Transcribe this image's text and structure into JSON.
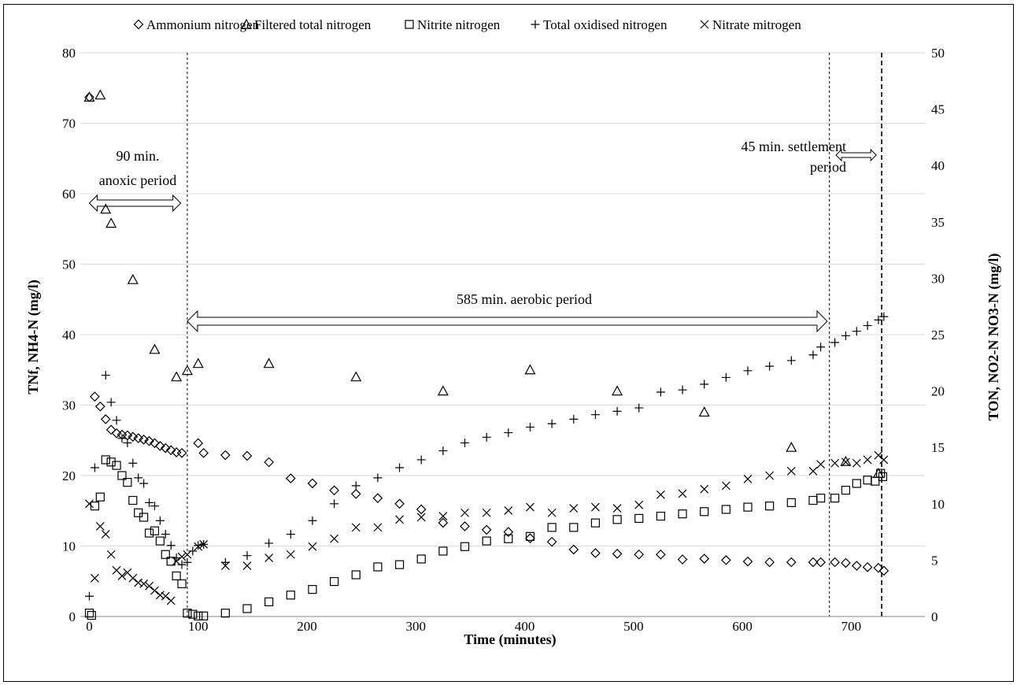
{
  "chart_data": {
    "type": "scatter",
    "xlabel": "Time (minutes)",
    "ylabel_left": "TNf, NH4-N (mg/l)",
    "ylabel_right": "TON, NO2-N NO3-N (mg/l)",
    "xlim": [
      0,
      750
    ],
    "ylim_left": [
      0,
      80
    ],
    "ylim_right": [
      0,
      50
    ],
    "x_ticks": [
      0,
      100,
      200,
      300,
      400,
      500,
      600,
      700
    ],
    "y_left_ticks": [
      0,
      10,
      20,
      30,
      40,
      50,
      60,
      70,
      80
    ],
    "y_right_ticks": [
      0,
      5,
      10,
      15,
      20,
      25,
      30,
      35,
      40,
      45,
      50
    ],
    "grid": "horizontal",
    "legend_position": "top",
    "series": [
      {
        "name": "Ammonium nitrogen",
        "marker": "diamond",
        "axis": "left",
        "points": [
          [
            0,
            73.7
          ],
          [
            5,
            31.2
          ],
          [
            10,
            29.8
          ],
          [
            15,
            28.0
          ],
          [
            20,
            26.5
          ],
          [
            25,
            26.0
          ],
          [
            30,
            25.8
          ],
          [
            35,
            25.7
          ],
          [
            40,
            25.5
          ],
          [
            45,
            25.3
          ],
          [
            50,
            25.1
          ],
          [
            55,
            24.9
          ],
          [
            60,
            24.6
          ],
          [
            65,
            24.2
          ],
          [
            70,
            23.9
          ],
          [
            75,
            23.6
          ],
          [
            80,
            23.3
          ],
          [
            85,
            23.2
          ],
          [
            100,
            24.6
          ],
          [
            105,
            23.2
          ],
          [
            125,
            22.9
          ],
          [
            145,
            22.8
          ],
          [
            165,
            21.9
          ],
          [
            185,
            19.6
          ],
          [
            205,
            18.9
          ],
          [
            225,
            17.9
          ],
          [
            245,
            17.4
          ],
          [
            265,
            16.8
          ],
          [
            285,
            16.0
          ],
          [
            305,
            15.2
          ],
          [
            325,
            13.3
          ],
          [
            345,
            12.8
          ],
          [
            365,
            12.3
          ],
          [
            385,
            12.0
          ],
          [
            405,
            11.1
          ],
          [
            425,
            10.6
          ],
          [
            445,
            9.5
          ],
          [
            465,
            9.0
          ],
          [
            485,
            8.9
          ],
          [
            505,
            8.8
          ],
          [
            525,
            8.8
          ],
          [
            545,
            8.1
          ],
          [
            565,
            8.2
          ],
          [
            585,
            8.0
          ],
          [
            605,
            7.8
          ],
          [
            625,
            7.7
          ],
          [
            645,
            7.7
          ],
          [
            665,
            7.7
          ],
          [
            672,
            7.7
          ],
          [
            685,
            7.7
          ],
          [
            695,
            7.6
          ],
          [
            705,
            7.2
          ],
          [
            715,
            7.0
          ],
          [
            725,
            6.9
          ],
          [
            730,
            6.5
          ]
        ]
      },
      {
        "name": "Filtered total nitrogen",
        "marker": "triangle",
        "axis": "left",
        "points": [
          [
            0,
            73.7
          ],
          [
            10,
            74.0
          ],
          [
            15,
            57.8
          ],
          [
            20,
            55.8
          ],
          [
            40,
            47.8
          ],
          [
            60,
            37.9
          ],
          [
            80,
            34.0
          ],
          [
            90,
            34.9
          ],
          [
            100,
            35.9
          ],
          [
            165,
            35.9
          ],
          [
            245,
            34.0
          ],
          [
            325,
            32.0
          ],
          [
            405,
            35.0
          ],
          [
            485,
            32.0
          ],
          [
            565,
            29.0
          ],
          [
            645,
            24.0
          ],
          [
            695,
            22.0
          ],
          [
            725,
            20.3
          ]
        ]
      },
      {
        "name": "Nitrite nitrogen",
        "marker": "square",
        "axis": "right",
        "points": [
          [
            0,
            0.3
          ],
          [
            2,
            0.1
          ],
          [
            5,
            9.8
          ],
          [
            10,
            10.6
          ],
          [
            15,
            13.9
          ],
          [
            20,
            13.7
          ],
          [
            25,
            13.4
          ],
          [
            30,
            12.5
          ],
          [
            35,
            11.9
          ],
          [
            40,
            10.3
          ],
          [
            45,
            9.2
          ],
          [
            50,
            8.8
          ],
          [
            55,
            7.4
          ],
          [
            60,
            7.6
          ],
          [
            65,
            6.7
          ],
          [
            70,
            5.5
          ],
          [
            75,
            4.9
          ],
          [
            80,
            3.6
          ],
          [
            85,
            2.9
          ],
          [
            90,
            0.3
          ],
          [
            95,
            0.2
          ],
          [
            100,
            0.05
          ],
          [
            105,
            0.05
          ],
          [
            125,
            0.3
          ],
          [
            145,
            0.7
          ],
          [
            165,
            1.3
          ],
          [
            185,
            1.9
          ],
          [
            205,
            2.4
          ],
          [
            225,
            3.1
          ],
          [
            245,
            3.7
          ],
          [
            265,
            4.4
          ],
          [
            285,
            4.6
          ],
          [
            305,
            5.1
          ],
          [
            325,
            5.8
          ],
          [
            345,
            6.2
          ],
          [
            365,
            6.7
          ],
          [
            385,
            6.9
          ],
          [
            405,
            7.1
          ],
          [
            425,
            7.9
          ],
          [
            445,
            7.9
          ],
          [
            465,
            8.3
          ],
          [
            485,
            8.6
          ],
          [
            505,
            8.7
          ],
          [
            525,
            8.9
          ],
          [
            545,
            9.1
          ],
          [
            565,
            9.3
          ],
          [
            585,
            9.5
          ],
          [
            605,
            9.7
          ],
          [
            625,
            9.8
          ],
          [
            645,
            10.1
          ],
          [
            665,
            10.3
          ],
          [
            672,
            10.5
          ],
          [
            685,
            10.5
          ],
          [
            695,
            11.2
          ],
          [
            705,
            11.8
          ],
          [
            715,
            12.1
          ],
          [
            722,
            12.0
          ],
          [
            727,
            12.7
          ],
          [
            729,
            12.4
          ]
        ]
      },
      {
        "name": "Total oxidised nitrogen",
        "marker": "plus",
        "axis": "right",
        "points": [
          [
            0,
            1.8
          ],
          [
            5,
            13.2
          ],
          [
            15,
            21.4
          ],
          [
            20,
            19.0
          ],
          [
            25,
            17.4
          ],
          [
            30,
            15.8
          ],
          [
            35,
            15.4
          ],
          [
            40,
            13.6
          ],
          [
            45,
            12.3
          ],
          [
            50,
            11.8
          ],
          [
            55,
            10.1
          ],
          [
            60,
            9.8
          ],
          [
            65,
            8.5
          ],
          [
            70,
            7.3
          ],
          [
            75,
            6.3
          ],
          [
            80,
            5.2
          ],
          [
            85,
            4.6
          ],
          [
            90,
            4.8
          ],
          [
            95,
            5.8
          ],
          [
            100,
            6.3
          ],
          [
            105,
            6.4
          ],
          [
            125,
            4.8
          ],
          [
            145,
            5.4
          ],
          [
            165,
            6.5
          ],
          [
            185,
            7.3
          ],
          [
            205,
            8.5
          ],
          [
            225,
            10.0
          ],
          [
            245,
            11.6
          ],
          [
            265,
            12.3
          ],
          [
            285,
            13.2
          ],
          [
            305,
            13.9
          ],
          [
            325,
            14.7
          ],
          [
            345,
            15.4
          ],
          [
            365,
            15.9
          ],
          [
            385,
            16.3
          ],
          [
            405,
            16.8
          ],
          [
            425,
            17.1
          ],
          [
            445,
            17.5
          ],
          [
            465,
            17.9
          ],
          [
            485,
            18.2
          ],
          [
            505,
            18.5
          ],
          [
            525,
            19.9
          ],
          [
            545,
            20.1
          ],
          [
            565,
            20.6
          ],
          [
            585,
            21.2
          ],
          [
            605,
            21.8
          ],
          [
            625,
            22.2
          ],
          [
            645,
            22.7
          ],
          [
            665,
            23.2
          ],
          [
            672,
            23.9
          ],
          [
            685,
            24.3
          ],
          [
            695,
            24.9
          ],
          [
            705,
            25.3
          ],
          [
            715,
            25.8
          ],
          [
            725,
            26.3
          ],
          [
            730,
            26.6
          ]
        ]
      },
      {
        "name": "Nitrate mitrogen",
        "marker": "cross",
        "axis": "right",
        "points": [
          [
            0,
            10.0
          ],
          [
            5,
            3.4
          ],
          [
            10,
            8.0
          ],
          [
            15,
            7.3
          ],
          [
            20,
            5.5
          ],
          [
            25,
            4.1
          ],
          [
            30,
            3.6
          ],
          [
            35,
            3.9
          ],
          [
            40,
            3.4
          ],
          [
            45,
            3.0
          ],
          [
            50,
            2.9
          ],
          [
            55,
            2.7
          ],
          [
            60,
            2.3
          ],
          [
            65,
            1.9
          ],
          [
            70,
            1.8
          ],
          [
            75,
            1.4
          ],
          [
            80,
            4.9
          ],
          [
            85,
            5.3
          ],
          [
            90,
            5.5
          ],
          [
            100,
            6.2
          ],
          [
            105,
            6.4
          ],
          [
            125,
            4.5
          ],
          [
            145,
            4.5
          ],
          [
            165,
            5.2
          ],
          [
            185,
            5.5
          ],
          [
            205,
            6.2
          ],
          [
            225,
            6.9
          ],
          [
            245,
            7.9
          ],
          [
            265,
            7.9
          ],
          [
            285,
            8.6
          ],
          [
            305,
            8.8
          ],
          [
            325,
            8.9
          ],
          [
            345,
            9.2
          ],
          [
            365,
            9.2
          ],
          [
            385,
            9.4
          ],
          [
            405,
            9.7
          ],
          [
            425,
            9.2
          ],
          [
            445,
            9.6
          ],
          [
            465,
            9.7
          ],
          [
            485,
            9.6
          ],
          [
            505,
            9.9
          ],
          [
            525,
            10.8
          ],
          [
            545,
            10.9
          ],
          [
            565,
            11.3
          ],
          [
            585,
            11.6
          ],
          [
            605,
            12.2
          ],
          [
            625,
            12.5
          ],
          [
            645,
            12.9
          ],
          [
            665,
            12.9
          ],
          [
            672,
            13.5
          ],
          [
            685,
            13.6
          ],
          [
            695,
            13.7
          ],
          [
            705,
            13.6
          ],
          [
            715,
            13.9
          ],
          [
            725,
            14.3
          ],
          [
            730,
            13.9
          ]
        ]
      }
    ],
    "annotations": {
      "anoxic_lines": [
        "90 min.",
        "anoxic period"
      ],
      "aerobic_label": "585 min. aerobic period",
      "settlement_lines": [
        "45 min. settlement",
        "period"
      ]
    },
    "period_markers": [
      90,
      680,
      728
    ]
  }
}
